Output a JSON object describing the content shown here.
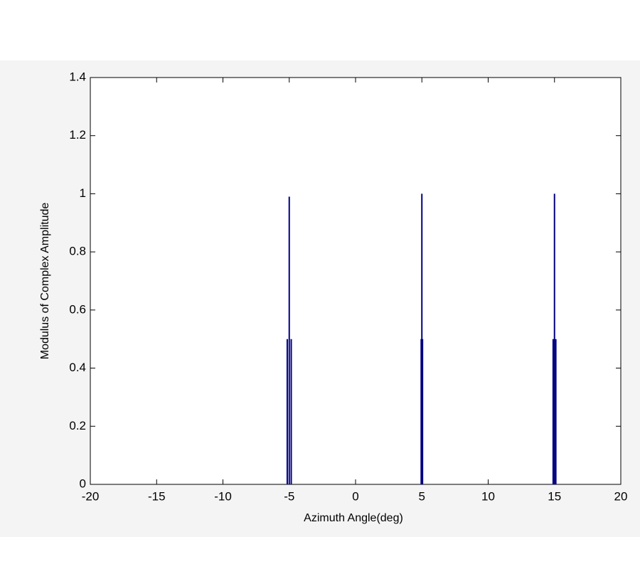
{
  "chart_data": {
    "type": "stem",
    "x_label": "Azimuth Angle(deg)",
    "y_label": "Modulus of Complex Amplitude",
    "x": [
      -5.15,
      -5.0,
      -4.85,
      4.95,
      5.0,
      5.05,
      14.9,
      15.0,
      15.1
    ],
    "values": [
      0.5,
      0.99,
      0.5,
      0.5,
      1.0,
      0.5,
      0.5,
      1.0,
      0.5
    ],
    "color": "#000080",
    "xlim": [
      -20,
      20
    ],
    "xticks": [
      -20,
      -15,
      -10,
      -5,
      0,
      5,
      10,
      15,
      20
    ],
    "ylim": [
      0,
      1.4
    ],
    "yticks": [
      0,
      0.2,
      0.4,
      0.6,
      0.8,
      1,
      1.2,
      1.4
    ],
    "grid": false
  }
}
